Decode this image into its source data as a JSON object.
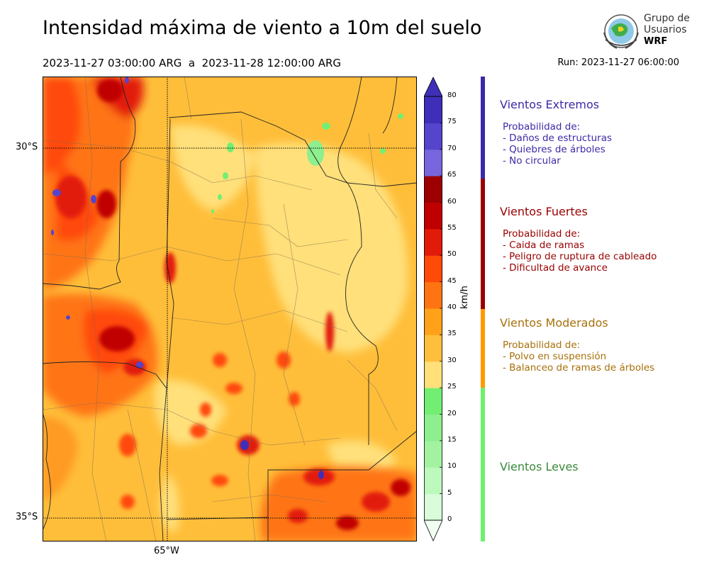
{
  "header": {
    "title": "Intensidad máxima de viento a 10m del suelo",
    "period": "2023-11-27 03:00:00 ARG  a  2023-11-28 12:00:00 ARG",
    "run": "Run: 2023-11-27 06:00:00"
  },
  "logo": {
    "line1": "Grupo de",
    "line2": "Usuarios",
    "line3": "WRF"
  },
  "map": {
    "lat_labels": [
      "30°S",
      "35°S"
    ],
    "lon_labels": [
      "65°W"
    ]
  },
  "colorbar": {
    "units": "km/h",
    "ticks": [
      "0",
      "5",
      "10",
      "15",
      "20",
      "25",
      "30",
      "35",
      "40",
      "45",
      "50",
      "55",
      "60",
      "65",
      "70",
      "75",
      "80"
    ],
    "colors": [
      "#f0fff0",
      "#d8fdd8",
      "#bdf8bd",
      "#a2f2a2",
      "#8def8d",
      "#72ef72",
      "#ffe07a",
      "#ffbf3c",
      "#ffa21a",
      "#ff7412",
      "#ff4a08",
      "#e21a08",
      "#c00000",
      "#9c0000",
      "#7766dd",
      "#5544cc",
      "#3f2fb8"
    ]
  },
  "categories": [
    {
      "title": "Vientos Extremos",
      "color": "#3b2aa8",
      "lines": [
        "Probabilidad de:",
        "- Daños de estructuras",
        "- Quiebres de árboles",
        "- No circular"
      ]
    },
    {
      "title": "Vientos Fuertes",
      "color": "#9a0000",
      "lines": [
        "Probabilidad de:",
        "- Caida de ramas",
        "- Peligro de ruptura de cableado",
        "- Dificultad de avance"
      ]
    },
    {
      "title": "Vientos Moderados",
      "color": "#a8700a",
      "lines": [
        "Probabilidad de:",
        "- Polvo en suspensión",
        "- Balanceo de ramas de árboles"
      ]
    },
    {
      "title": "Vientos Leves",
      "color": "#3a8a3a",
      "lines": []
    }
  ],
  "category_bar_colors": [
    "#3b2aa8",
    "#9a0000",
    "#ff9a00",
    "#6ef06e"
  ]
}
